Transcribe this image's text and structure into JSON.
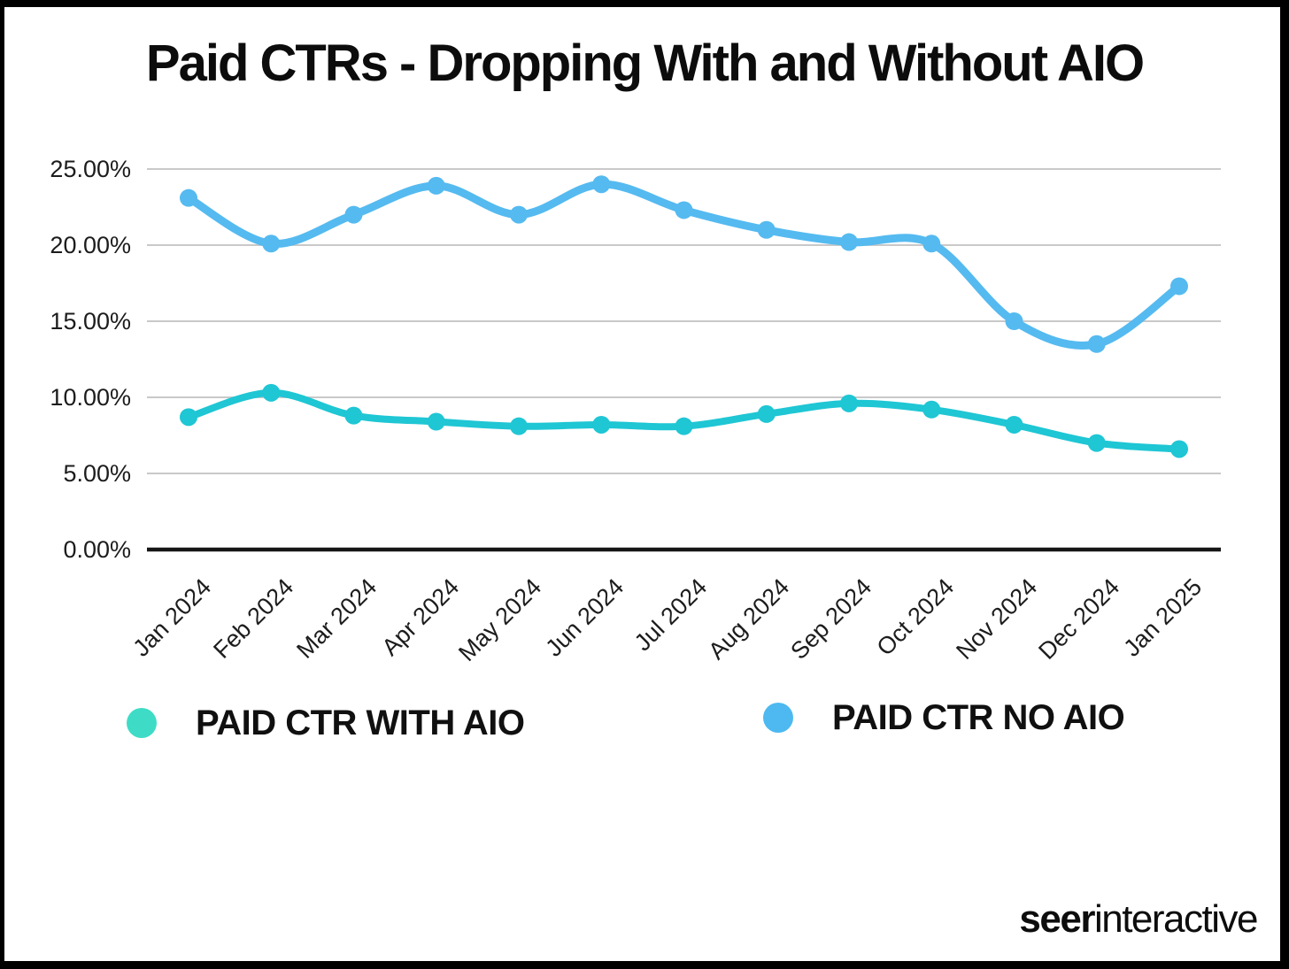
{
  "chart_data": {
    "type": "line",
    "title": "Paid CTRs - Dropping With and Without AIO",
    "categories": [
      "Jan 2024",
      "Feb 2024",
      "Mar 2024",
      "Apr 2024",
      "May 2024",
      "Jun 2024",
      "Jul 2024",
      "Aug 2024",
      "Sep 2024",
      "Oct 2024",
      "Nov 2024",
      "Dec 2024",
      "Jan 2025"
    ],
    "series": [
      {
        "name": "PAID CTR WITH AIO",
        "color": "#1fc6d4",
        "values": [
          8.7,
          10.3,
          8.8,
          8.4,
          8.1,
          8.2,
          8.1,
          8.9,
          9.6,
          9.2,
          8.2,
          7.0,
          6.6
        ]
      },
      {
        "name": "PAID CTR NO AIO",
        "color": "#55baf0",
        "values": [
          23.1,
          20.1,
          22.0,
          23.9,
          22.0,
          24.0,
          22.3,
          21.0,
          20.2,
          20.1,
          15.0,
          13.5,
          17.3
        ]
      }
    ],
    "yticks": [
      {
        "v": 25,
        "label": "25.00%"
      },
      {
        "v": 20,
        "label": "20.00%"
      },
      {
        "v": 15,
        "label": "15.00%"
      },
      {
        "v": 10,
        "label": "10.00%"
      },
      {
        "v": 5,
        "label": "5.00%"
      },
      {
        "v": 0,
        "label": "0.00%"
      }
    ],
    "ylim": [
      0,
      25
    ],
    "grid": true,
    "grid_color": "#c9c9c9",
    "axis_color": "#161616",
    "xtick_rotation": 45,
    "legend_position": "bottom"
  },
  "legend": {
    "items": [
      {
        "label": "PAID CTR WITH AIO",
        "color": "#3edcc6"
      },
      {
        "label": "PAID CTR NO AIO",
        "color": "#4db9f0"
      }
    ]
  },
  "footer": {
    "logo_bold": "seer",
    "logo_rest": "interactive"
  }
}
